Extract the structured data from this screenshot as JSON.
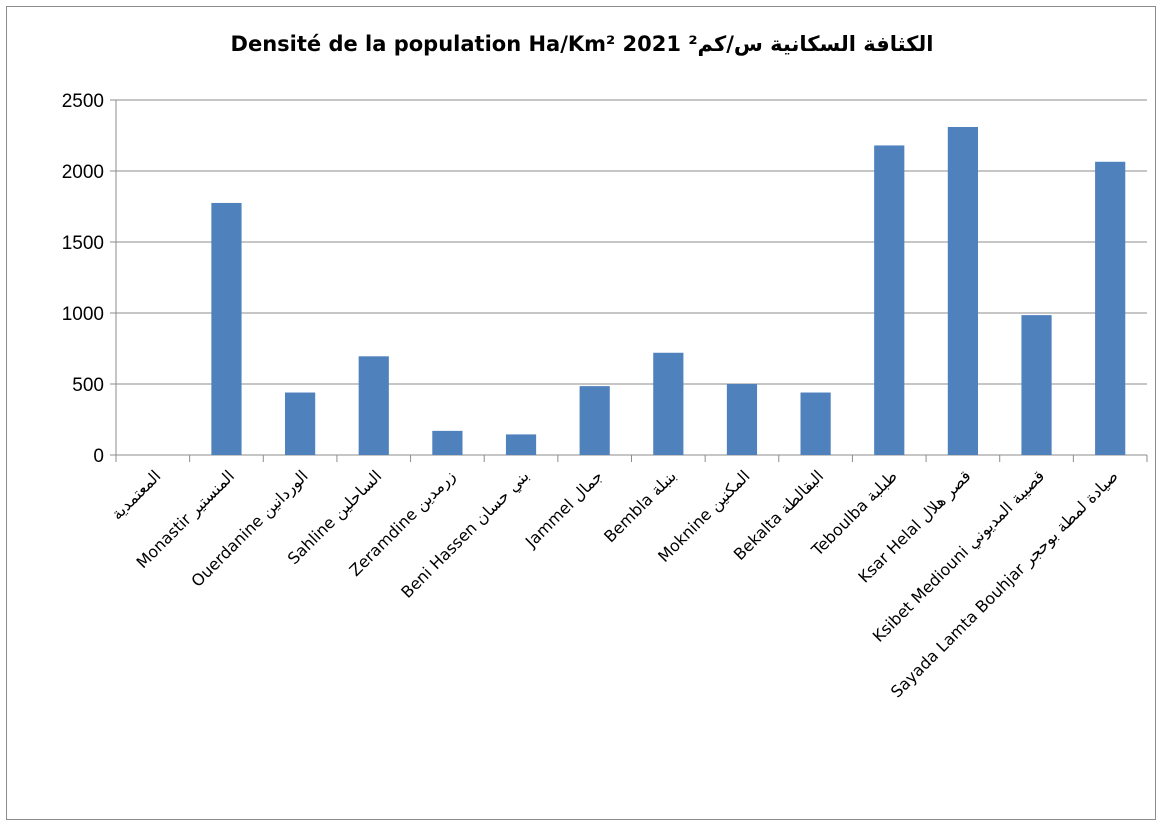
{
  "chart_data": {
    "type": "bar",
    "title": "Densité de la population Ha/Km²  2021  الكثافة السكانية س/كم²",
    "xlabel": "",
    "ylabel": "",
    "ylim": [
      0,
      2500
    ],
    "yticks": [
      0,
      500,
      1000,
      1500,
      2000,
      2500
    ],
    "grid": true,
    "legend": "none",
    "bar_color": "#4f81bd",
    "categories": [
      "المعتمدية",
      "Monastir  المنستير",
      "Ouerdanine  الوردانين",
      "Sahline  الساحلين",
      "Zeramdine  زرمدين",
      "Beni Hassen  بني حسان",
      "Jammel  جمال",
      "Bembla  بنبلة",
      "Moknine  المكنين",
      "Bekalta  البقالطة",
      "Teboulba  طبلبة",
      "Ksar Helal  قصر هلال",
      "Ksibet Mediouni  قصيبة المديوني",
      "Sayada Lamta Bouhjar  صيادة لمطة بوحجر"
    ],
    "values": [
      null,
      1775,
      440,
      695,
      170,
      145,
      485,
      720,
      500,
      440,
      2180,
      2310,
      985,
      2065
    ]
  }
}
